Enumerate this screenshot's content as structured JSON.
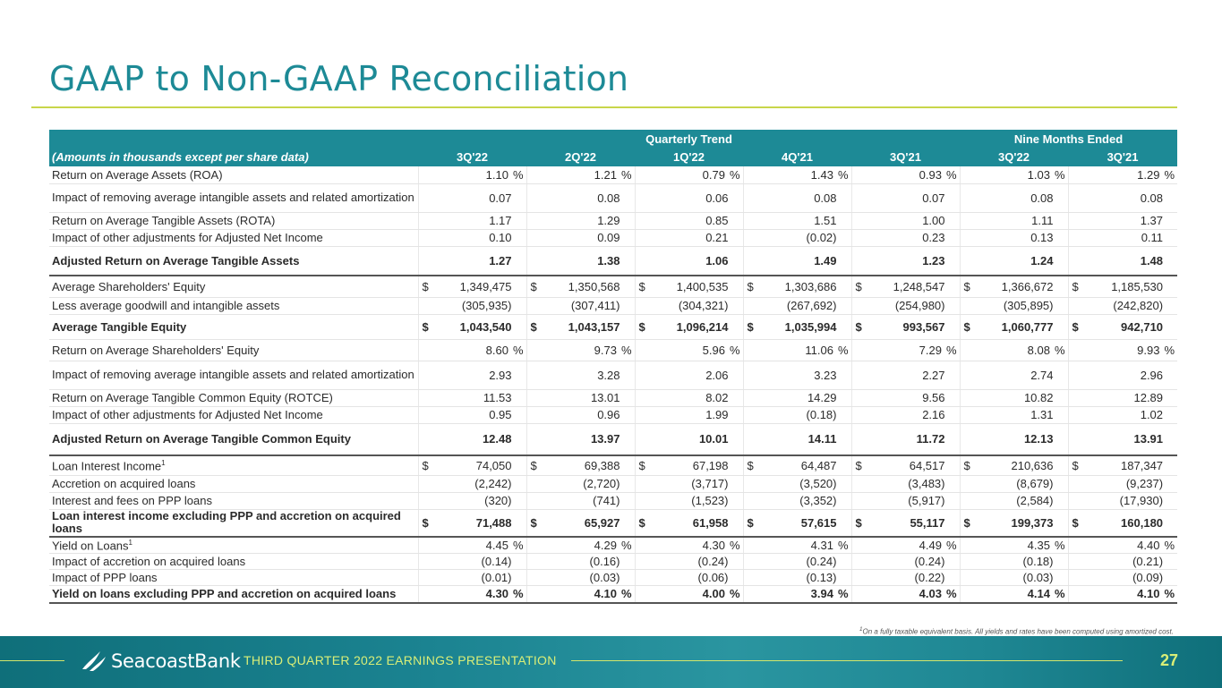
{
  "title": "GAAP to Non-GAAP Reconciliation",
  "table": {
    "group_quarterly": "Quarterly Trend",
    "group_nine": "Nine  Months Ended",
    "units_label": "(Amounts in thousands except per share data)",
    "columns": [
      "3Q'22",
      "2Q'22",
      "1Q'22",
      "4Q'21",
      "3Q'21",
      "3Q'22",
      "3Q'21"
    ],
    "rows": [
      {
        "label": "Return on Average Assets (ROA)",
        "pct": true,
        "cells": [
          "1.10",
          "1.21",
          "0.79",
          "1.43",
          "0.93",
          "1.03",
          "1.29"
        ]
      },
      {
        "label": "Impact of removing average intangible assets and related amortization",
        "cells": [
          "0.07",
          "0.08",
          "0.06",
          "0.08",
          "0.07",
          "0.08",
          "0.08"
        ]
      },
      {
        "label": "Return on Average Tangible Assets (ROTA)",
        "cells": [
          "1.17",
          "1.29",
          "0.85",
          "1.51",
          "1.00",
          "1.11",
          "1.37"
        ]
      },
      {
        "label": "Impact of other adjustments for Adjusted Net Income",
        "cells": [
          "0.10",
          "0.09",
          "0.21",
          "(0.02)",
          "0.23",
          "0.13",
          "0.11"
        ]
      },
      {
        "label": "Adjusted Return on Average Tangible Assets",
        "cells": [
          "1.27",
          "1.38",
          "1.06",
          "1.49",
          "1.23",
          "1.24",
          "1.48"
        ]
      },
      {
        "label": "Average Shareholders' Equity",
        "cur": true,
        "cells": [
          "1,349,475",
          "1,350,568",
          "1,400,535",
          "1,303,686",
          "1,248,547",
          "1,366,672",
          "1,185,530"
        ]
      },
      {
        "label": "Less average goodwill and intangible assets",
        "cells": [
          "(305,935)",
          "(307,411)",
          "(304,321)",
          "(267,692)",
          "(254,980)",
          "(305,895)",
          "(242,820)"
        ]
      },
      {
        "label": "Average Tangible Equity",
        "cur": true,
        "cells": [
          "1,043,540",
          "1,043,157",
          "1,096,214",
          "1,035,994",
          "993,567",
          "1,060,777",
          "942,710"
        ]
      },
      {
        "label": "Return on Average Shareholders' Equity",
        "pct": true,
        "cells": [
          "8.60",
          "9.73",
          "5.96",
          "11.06",
          "7.29",
          "8.08",
          "9.93"
        ]
      },
      {
        "label": "Impact of removing average intangible assets and related amortization",
        "cells": [
          "2.93",
          "3.28",
          "2.06",
          "3.23",
          "2.27",
          "2.74",
          "2.96"
        ]
      },
      {
        "label": "Return on Average Tangible Common Equity (ROTCE)",
        "cells": [
          "11.53",
          "13.01",
          "8.02",
          "14.29",
          "9.56",
          "10.82",
          "12.89"
        ]
      },
      {
        "label": "Impact of other adjustments for Adjusted Net Income",
        "cells": [
          "0.95",
          "0.96",
          "1.99",
          "(0.18)",
          "2.16",
          "1.31",
          "1.02"
        ]
      },
      {
        "label": "Adjusted Return on Average Tangible Common Equity",
        "cells": [
          "12.48",
          "13.97",
          "10.01",
          "14.11",
          "11.72",
          "12.13",
          "13.91"
        ]
      },
      {
        "label": "Loan Interest Income",
        "sup": "1",
        "cur": true,
        "cells": [
          "74,050",
          "69,388",
          "67,198",
          "64,487",
          "64,517",
          "210,636",
          "187,347"
        ]
      },
      {
        "label": "Accretion on acquired loans",
        "cells": [
          "(2,242)",
          "(2,720)",
          "(3,717)",
          "(3,520)",
          "(3,483)",
          "(8,679)",
          "(9,237)"
        ]
      },
      {
        "label": "Interest and fees on PPP loans",
        "cells": [
          "(320)",
          "(741)",
          "(1,523)",
          "(3,352)",
          "(5,917)",
          "(2,584)",
          "(17,930)"
        ]
      },
      {
        "label": "Loan interest income excluding PPP and accretion on acquired loans",
        "cur": true,
        "cells": [
          "71,488",
          "65,927",
          "61,958",
          "57,615",
          "55,117",
          "199,373",
          "160,180"
        ]
      },
      {
        "label": "Yield on Loans",
        "sup": "1",
        "pct": true,
        "cells": [
          "4.45",
          "4.29",
          "4.30",
          "4.31",
          "4.49",
          "4.35",
          "4.40"
        ]
      },
      {
        "label": "Impact of accretion on acquired loans",
        "cells": [
          "(0.14)",
          "(0.16)",
          "(0.24)",
          "(0.24)",
          "(0.24)",
          "(0.18)",
          "(0.21)"
        ]
      },
      {
        "label": "Impact of PPP loans",
        "cells": [
          "(0.01)",
          "(0.03)",
          "(0.06)",
          "(0.13)",
          "(0.22)",
          "(0.03)",
          "(0.09)"
        ]
      },
      {
        "label": "Yield on loans excluding PPP and accretion on acquired loans",
        "pct": true,
        "cells": [
          "4.30",
          "4.10",
          "4.00",
          "3.94",
          "4.03",
          "4.14",
          "4.10"
        ]
      }
    ],
    "currency_symbol": "$",
    "percent_symbol": "%"
  },
  "footnote_marker": "1",
  "footnote": "On a fully taxable equivalent basis. All yields and rates have been computed using amortized cost.",
  "footer": {
    "brand": "SeacoastBank",
    "presentation": "THIRD QUARTER 2022 EARNINGS PRESENTATION",
    "page_number": "27"
  },
  "colors": {
    "accent": "#1d8a96",
    "lime": "#c8d64a"
  }
}
